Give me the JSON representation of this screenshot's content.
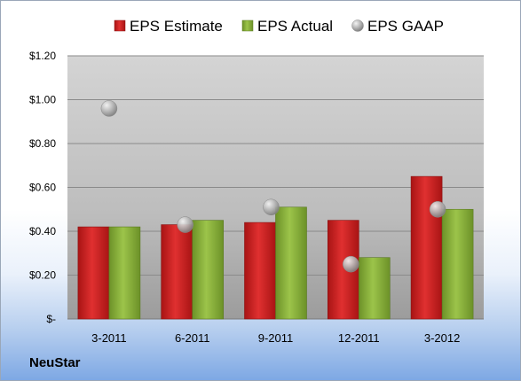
{
  "company": "NeuStar",
  "chart_data": {
    "type": "bar",
    "categories": [
      "3-2011",
      "6-2011",
      "9-2011",
      "12-2011",
      "3-2012"
    ],
    "series": [
      {
        "name": "EPS Estimate",
        "kind": "bar",
        "color": "#d42020",
        "values": [
          0.42,
          0.43,
          0.44,
          0.45,
          0.65
        ]
      },
      {
        "name": "EPS Actual",
        "kind": "bar",
        "color": "#8cb43c",
        "values": [
          0.42,
          0.45,
          0.51,
          0.28,
          0.5
        ]
      },
      {
        "name": "EPS GAAP",
        "kind": "scatter",
        "color": "#b8b8b8",
        "values": [
          0.96,
          0.43,
          0.51,
          0.25,
          0.5
        ]
      }
    ],
    "yticks": [
      {
        "value": 0,
        "label": "$-"
      },
      {
        "value": 0.2,
        "label": "$0.20"
      },
      {
        "value": 0.4,
        "label": "$0.40"
      },
      {
        "value": 0.6,
        "label": "$0.60"
      },
      {
        "value": 0.8,
        "label": "$0.80"
      },
      {
        "value": 1.0,
        "label": "$1.00"
      },
      {
        "value": 1.2,
        "label": "$1.20"
      }
    ],
    "ylim": [
      0,
      1.2
    ],
    "grid": true,
    "legend_position": "top"
  }
}
